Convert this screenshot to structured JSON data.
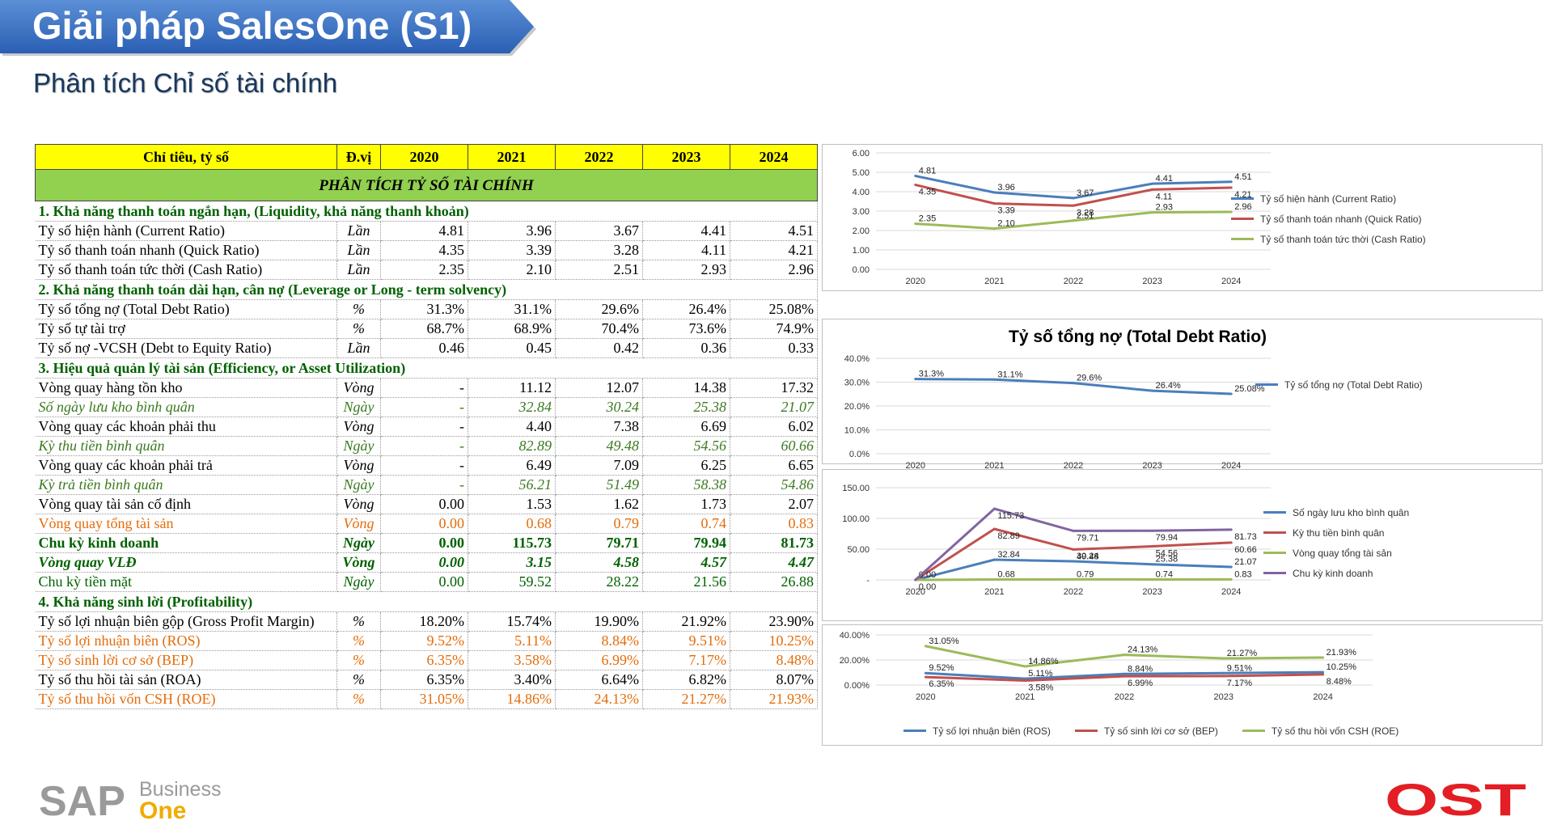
{
  "header": {
    "title": "Giải pháp SalesOne (S1)",
    "subtitle": "Phân tích Chỉ số tài chính"
  },
  "table": {
    "columns": [
      "Chỉ tiêu, tỷ số",
      "Đ.vị",
      "2020",
      "2021",
      "2022",
      "2023",
      "2024"
    ],
    "band": "PHÂN TÍCH TỶ SỐ TÀI CHÍNH",
    "rows": [
      {
        "type": "sec",
        "label": "1. Khả năng thanh toán ngắn hạn, (Liquidity, khả năng thanh khoản)"
      },
      {
        "type": "row",
        "style": "",
        "label": "Tỷ số hiện hành (Current Ratio)",
        "unit": "Lần",
        "v": [
          "4.81",
          "3.96",
          "3.67",
          "4.41",
          "4.51"
        ]
      },
      {
        "type": "row",
        "style": "",
        "label": "Tỷ số thanh toán nhanh (Quick Ratio)",
        "unit": "Lần",
        "v": [
          "4.35",
          "3.39",
          "3.28",
          "4.11",
          "4.21"
        ]
      },
      {
        "type": "row",
        "style": "",
        "label": "Tỷ số thanh toán tức thời (Cash Ratio)",
        "unit": "Lần",
        "v": [
          "2.35",
          "2.10",
          "2.51",
          "2.93",
          "2.96"
        ]
      },
      {
        "type": "sec",
        "label": "2. Khả năng thanh toán dài hạn, cân nợ (Leverage or Long - term solvency)"
      },
      {
        "type": "row",
        "style": "",
        "label": "Tỷ số tổng nợ (Total Debt Ratio)",
        "unit": "%",
        "v": [
          "31.3%",
          "31.1%",
          "29.6%",
          "26.4%",
          "25.08%"
        ]
      },
      {
        "type": "row",
        "style": "",
        "label": "Tỷ số tự tài trợ",
        "unit": "%",
        "v": [
          "68.7%",
          "68.9%",
          "70.4%",
          "73.6%",
          "74.9%"
        ]
      },
      {
        "type": "row",
        "style": "",
        "label": "Tỷ số nợ -VCSH (Debt to Equity Ratio)",
        "unit": "Lần",
        "v": [
          "0.46",
          "0.45",
          "0.42",
          "0.36",
          "0.33"
        ]
      },
      {
        "type": "sec",
        "label": "3. Hiệu quả quản lý tài sản (Efficiency, or Asset Utilization)"
      },
      {
        "type": "row",
        "style": "",
        "label": "Vòng quay hàng tồn kho",
        "unit": "Vòng",
        "v": [
          "-",
          "11.12",
          "12.07",
          "14.38",
          "17.32"
        ]
      },
      {
        "type": "row",
        "style": "c-italic-green",
        "label": "Số ngày lưu kho bình quân",
        "unit": "Ngày",
        "v": [
          "-",
          "32.84",
          "30.24",
          "25.38",
          "21.07"
        ]
      },
      {
        "type": "row",
        "style": "",
        "label": "Vòng quay các khoản phải thu",
        "unit": "Vòng",
        "v": [
          "-",
          "4.40",
          "7.38",
          "6.69",
          "6.02"
        ]
      },
      {
        "type": "row",
        "style": "c-italic-green",
        "label": "Kỳ thu tiền bình quân",
        "unit": "Ngày",
        "v": [
          "-",
          "82.89",
          "49.48",
          "54.56",
          "60.66"
        ]
      },
      {
        "type": "row",
        "style": "",
        "label": "Vòng quay các khoản phải trả",
        "unit": "Vòng",
        "v": [
          "-",
          "6.49",
          "7.09",
          "6.25",
          "6.65"
        ]
      },
      {
        "type": "row",
        "style": "c-italic-green",
        "label": "Kỳ trả tiền bình quân",
        "unit": "Ngày",
        "v": [
          "-",
          "56.21",
          "51.49",
          "58.38",
          "54.86"
        ]
      },
      {
        "type": "row",
        "style": "",
        "label": "Vòng quay tài sản cố định",
        "unit": "Vòng",
        "v": [
          "0.00",
          "1.53",
          "1.62",
          "1.73",
          "2.07"
        ]
      },
      {
        "type": "row",
        "style": "c-orange",
        "label": "Vòng quay tổng tài sản",
        "unit": "Vòng",
        "v": [
          "0.00",
          "0.68",
          "0.79",
          "0.74",
          "0.83"
        ]
      },
      {
        "type": "row",
        "style": "c-bold-green",
        "label": "Chu kỳ kinh doanh",
        "unit": "Ngày",
        "v": [
          "0.00",
          "115.73",
          "79.71",
          "79.94",
          "81.73"
        ]
      },
      {
        "type": "row",
        "style": "c-bold-italic-green",
        "label": "Vòng quay VLĐ",
        "unit": "Vòng",
        "v": [
          "0.00",
          "3.15",
          "4.58",
          "4.57",
          "4.47"
        ]
      },
      {
        "type": "row",
        "style": "c-green",
        "label": "Chu kỳ tiền mặt",
        "unit": "Ngày",
        "v": [
          "0.00",
          "59.52",
          "28.22",
          "21.56",
          "26.88"
        ]
      },
      {
        "type": "sec",
        "label": "4. Khả năng sinh lời (Profitability)"
      },
      {
        "type": "row",
        "style": "",
        "label": "Tỷ số lợi nhuận biên gộp (Gross Profit Margin)",
        "unit": "%",
        "v": [
          "18.20%",
          "15.74%",
          "19.90%",
          "21.92%",
          "23.90%"
        ]
      },
      {
        "type": "row",
        "style": "c-orange",
        "label": "Tỷ số lợi nhuận biên (ROS)",
        "unit": "%",
        "v": [
          "9.52%",
          "5.11%",
          "8.84%",
          "9.51%",
          "10.25%"
        ]
      },
      {
        "type": "row",
        "style": "c-orange",
        "label": "Tỷ số sinh lời cơ sở (BEP)",
        "unit": "%",
        "v": [
          "6.35%",
          "3.58%",
          "6.99%",
          "7.17%",
          "8.48%"
        ]
      },
      {
        "type": "row",
        "style": "",
        "label": "Tỷ số thu hồi tài sản (ROA)",
        "unit": "%",
        "v": [
          "6.35%",
          "3.40%",
          "6.64%",
          "6.82%",
          "8.07%"
        ]
      },
      {
        "type": "row",
        "style": "c-orange",
        "label": "Tỷ số thu hồi vốn CSH (ROE)",
        "unit": "%",
        "v": [
          "31.05%",
          "14.86%",
          "24.13%",
          "21.27%",
          "21.93%"
        ]
      }
    ]
  },
  "chart_data": [
    {
      "type": "line",
      "title": "",
      "categories": [
        "2020",
        "2021",
        "2022",
        "2023",
        "2024"
      ],
      "ylim": [
        0,
        6
      ],
      "yticks": [
        "0.00",
        "1.00",
        "2.00",
        "3.00",
        "4.00",
        "5.00",
        "6.00"
      ],
      "legend": "right",
      "series": [
        {
          "name": "Tỷ số hiện hành (Current Ratio)",
          "color": "#4a7ebb",
          "values": [
            4.81,
            3.96,
            3.67,
            4.41,
            4.51
          ],
          "labels": [
            "4.81",
            "3.96",
            "3.67",
            "4.41",
            "4.51"
          ]
        },
        {
          "name": "Tỷ số thanh toán nhanh (Quick Ratio)",
          "color": "#c0504d",
          "values": [
            4.35,
            3.39,
            3.28,
            4.11,
            4.21
          ],
          "labels": [
            "4.35",
            "3.39",
            "3.28",
            "4.11",
            "4.21"
          ]
        },
        {
          "name": "Tỷ số thanh toán tức thời (Cash Ratio)",
          "color": "#9bbb59",
          "values": [
            2.35,
            2.1,
            2.51,
            2.93,
            2.96
          ],
          "labels": [
            "2.35",
            "2.10",
            "2.51",
            "2.93",
            "2.96"
          ]
        }
      ]
    },
    {
      "type": "line",
      "title": "Tỷ số tổng nợ (Total Debt Ratio)",
      "categories": [
        "2020",
        "2021",
        "2022",
        "2023",
        "2024"
      ],
      "ylim": [
        0,
        40
      ],
      "yticks": [
        "0.0%",
        "10.0%",
        "20.0%",
        "30.0%",
        "40.0%"
      ],
      "legend": "right",
      "series": [
        {
          "name": "Tỷ số tổng nợ (Total Debt Ratio)",
          "color": "#4a7ebb",
          "values": [
            31.3,
            31.1,
            29.6,
            26.4,
            25.08
          ],
          "labels": [
            "31.3%",
            "31.1%",
            "29.6%",
            "26.4%",
            "25.08%"
          ]
        }
      ]
    },
    {
      "type": "line",
      "title": "",
      "categories": [
        "2020",
        "2021",
        "2022",
        "2023",
        "2024"
      ],
      "ylim": [
        0,
        150
      ],
      "yticks": [
        "-",
        "50.00",
        "100.00",
        "150.00"
      ],
      "legend": "right",
      "series": [
        {
          "name": "Số ngày lưu kho bình quân",
          "color": "#4a7ebb",
          "values": [
            0,
            32.84,
            30.24,
            25.38,
            21.07
          ],
          "labels": [
            "",
            "32.84",
            "30.24",
            "25.38",
            "21.07"
          ]
        },
        {
          "name": "Kỳ thu tiền bình quân",
          "color": "#c0504d",
          "values": [
            0,
            82.89,
            49.48,
            54.56,
            60.66
          ],
          "labels": [
            "",
            "82.89",
            "49.48",
            "54.56",
            "60.66"
          ]
        },
        {
          "name": "Vòng quay tổng tài sản",
          "color": "#9bbb59",
          "values": [
            0,
            0.68,
            0.79,
            0.74,
            0.83
          ],
          "labels": [
            "0.00",
            "0.68",
            "0.79",
            "0.74",
            "0.83"
          ]
        },
        {
          "name": "Chu kỳ kinh doanh",
          "color": "#8064a2",
          "values": [
            0,
            115.73,
            79.71,
            79.94,
            81.73
          ],
          "labels": [
            "0.00",
            "115.73",
            "79.71",
            "79.94",
            "81.73"
          ]
        }
      ]
    },
    {
      "type": "line",
      "title": "",
      "categories": [
        "2020",
        "2021",
        "2022",
        "2023",
        "2024"
      ],
      "ylim": [
        0,
        40
      ],
      "yticks": [
        "0.00%",
        "20.00%",
        "40.00%"
      ],
      "legend": "bottom",
      "series": [
        {
          "name": "Tỷ số lợi nhuận biên (ROS)",
          "color": "#4a7ebb",
          "values": [
            9.52,
            5.11,
            8.84,
            9.51,
            10.25
          ],
          "labels": [
            "9.52%",
            "5.11%",
            "8.84%",
            "9.51%",
            "10.25%"
          ]
        },
        {
          "name": "Tỷ số sinh lời cơ sở (BEP)",
          "color": "#c0504d",
          "values": [
            6.35,
            3.58,
            6.99,
            7.17,
            8.48
          ],
          "labels": [
            "6.35%",
            "3.58%",
            "6.99%",
            "7.17%",
            "8.48%"
          ]
        },
        {
          "name": "Tỷ số thu hồi vốn CSH (ROE)",
          "color": "#9bbb59",
          "values": [
            31.05,
            14.86,
            24.13,
            21.27,
            21.93
          ],
          "labels": [
            "31.05%",
            "14.86%",
            "24.13%",
            "21.27%",
            "21.93%"
          ]
        }
      ]
    }
  ],
  "logos": {
    "sap_main": "SAP",
    "sap_business": "Business",
    "sap_one": "One",
    "ost": "OST"
  }
}
